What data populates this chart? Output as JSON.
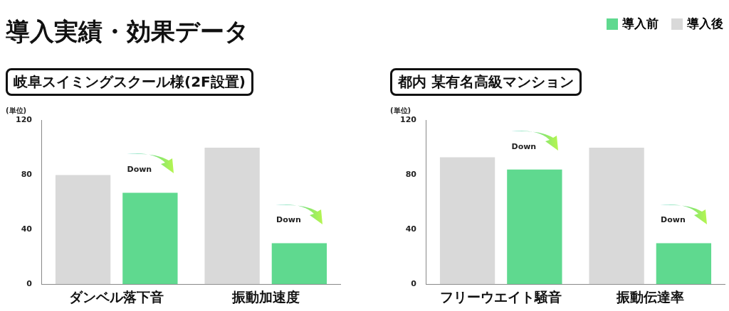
{
  "chart_data": [
    {
      "type": "bar",
      "title": "導入実績・効果データ",
      "subtitle": "岐阜スイミングスクール様(2F設置)",
      "ylabel": "(単位)",
      "categories": [
        "ダンベル落下音",
        "振動加速度"
      ],
      "series": [
        {
          "name": "導入後",
          "color": "#d9d9d9",
          "values": [
            80,
            100
          ]
        },
        {
          "name": "導入前",
          "color": "#5fd98f",
          "values": [
            67,
            30
          ]
        }
      ],
      "ylim": [
        0,
        120
      ],
      "yticks": [
        0,
        40,
        80,
        120
      ],
      "grid": false,
      "legend": "top right",
      "annotations": [
        "Down",
        "Down"
      ]
    },
    {
      "type": "bar",
      "subtitle": "都内 某有名高級マンション",
      "ylabel": "(単位)",
      "categories": [
        "フリーウエイト騒音",
        "振動伝達率"
      ],
      "series": [
        {
          "color": "#d9d9d9",
          "values": [
            93,
            100
          ]
        },
        {
          "color": "#5fd98f",
          "values": [
            84,
            30
          ]
        }
      ],
      "ylim": [
        0,
        120
      ],
      "yticks": [
        0,
        40,
        80,
        120
      ],
      "grid": false,
      "annotations": [
        "Down",
        "Down"
      ]
    }
  ]
}
